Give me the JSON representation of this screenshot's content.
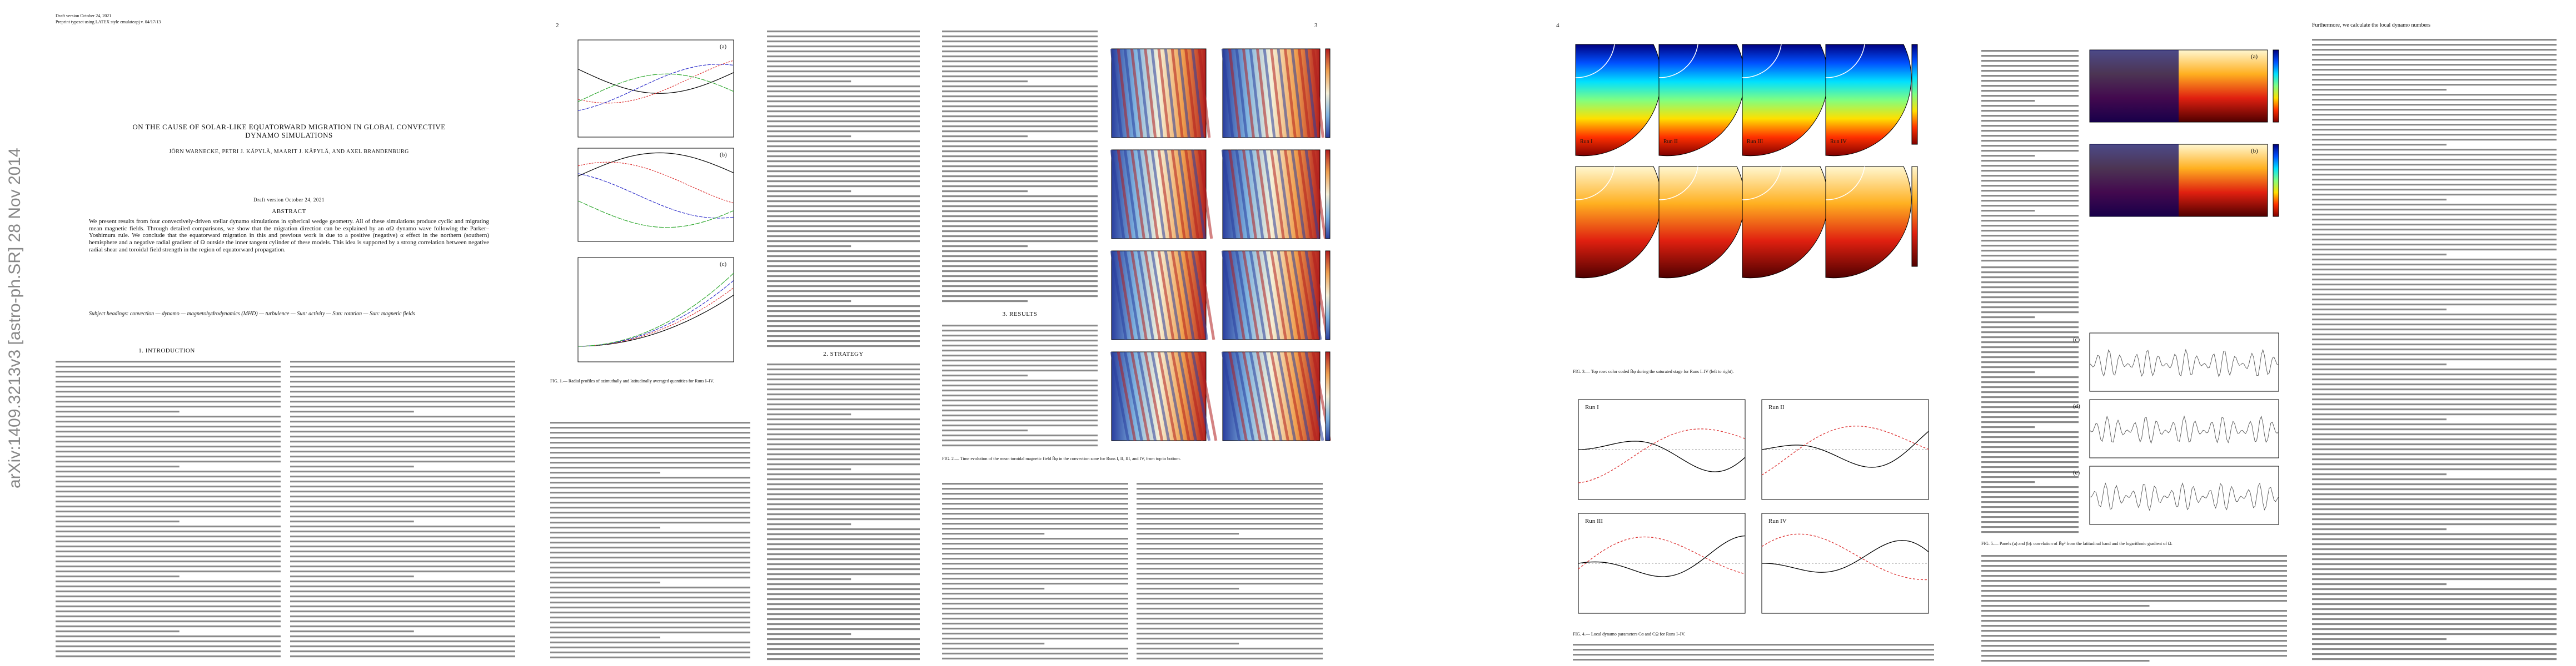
{
  "header": {
    "draft": "Draft version October 24, 2021",
    "preprint": "Preprint typeset using LATEX style emulateapj v. 04/17/13"
  },
  "arxiv_stamp": "arXiv:1409.3213v3  [astro-ph.SR]  28 Nov 2014",
  "title": "ON THE CAUSE OF SOLAR-LIKE EQUATORWARD MIGRATION IN GLOBAL CONVECTIVE DYNAMO SIMULATIONS",
  "authors": "JÖRN WARNECKE, PETRI J. KÄPYLÄ, MAARIT J. KÄPYLÄ, AND AXEL BRANDENBURG",
  "draft_footer": "Draft version October 24, 2021",
  "abstract": {
    "heading": "ABSTRACT",
    "text": "We present results from four convectively-driven stellar dynamo simulations in spherical wedge geometry. All of these simulations produce cyclic and migrating mean magnetic fields. Through detailed comparisons, we show that the migration direction can be explained by an αΩ dynamo wave following the Parker–Yoshimura rule. We conclude that the equatorward migration in this and previous work is due to a positive (negative) α effect in the northern (southern) hemisphere and a negative radial gradient of Ω outside the inner tangent cylinder of these models. This idea is supported by a strong correlation between negative radial shear and toroidal field strength in the region of equatorward propagation.",
    "keywords": "Subject headings: convection — dynamo — magnetohydrodynamics (MHD) — turbulence — Sun: activity — Sun: rotation — Sun: magnetic fields"
  },
  "sections": [
    "1. INTRODUCTION",
    "2. STRATEGY",
    "3. RESULTS"
  ],
  "page_numbers": [
    "2",
    "3",
    "4"
  ],
  "figures": {
    "fig1": {
      "panels": [
        "(a)",
        "(b)",
        "(c)"
      ],
      "caption": "FIG. 1.— Radial profiles of azimuthally and latitudinally averaged quantities for Runs I–IV."
    },
    "fig2": {
      "caption": "FIG. 2.— Time evolution of the mean toroidal magnetic field B̄φ in the convection zone for Runs I, II, III, and IV, from top to bottom."
    },
    "fig3": {
      "runs": [
        "Run I",
        "Run II",
        "Run III",
        "Run IV"
      ],
      "caption": "FIG. 3.— Top row: color coded B̄φ during the saturated stage for Runs I–IV (left to right)."
    },
    "fig4": {
      "runs": [
        "Run I",
        "Run II",
        "Run III",
        "Run IV"
      ],
      "caption": "FIG. 4.— Local dynamo parameters Cα and CΩ for Runs I–IV."
    },
    "fig5": {
      "panels": [
        "(a)",
        "(b)",
        "(c)",
        "(d)",
        "(e)"
      ],
      "caption": "FIG. 5.— Panels (a) and (b): correlation of B̄φ² from the latitudinal band and the logarithmic gradient of Ω."
    }
  },
  "page5_lead": "Furthermore, we calculate the local dynamo numbers"
}
